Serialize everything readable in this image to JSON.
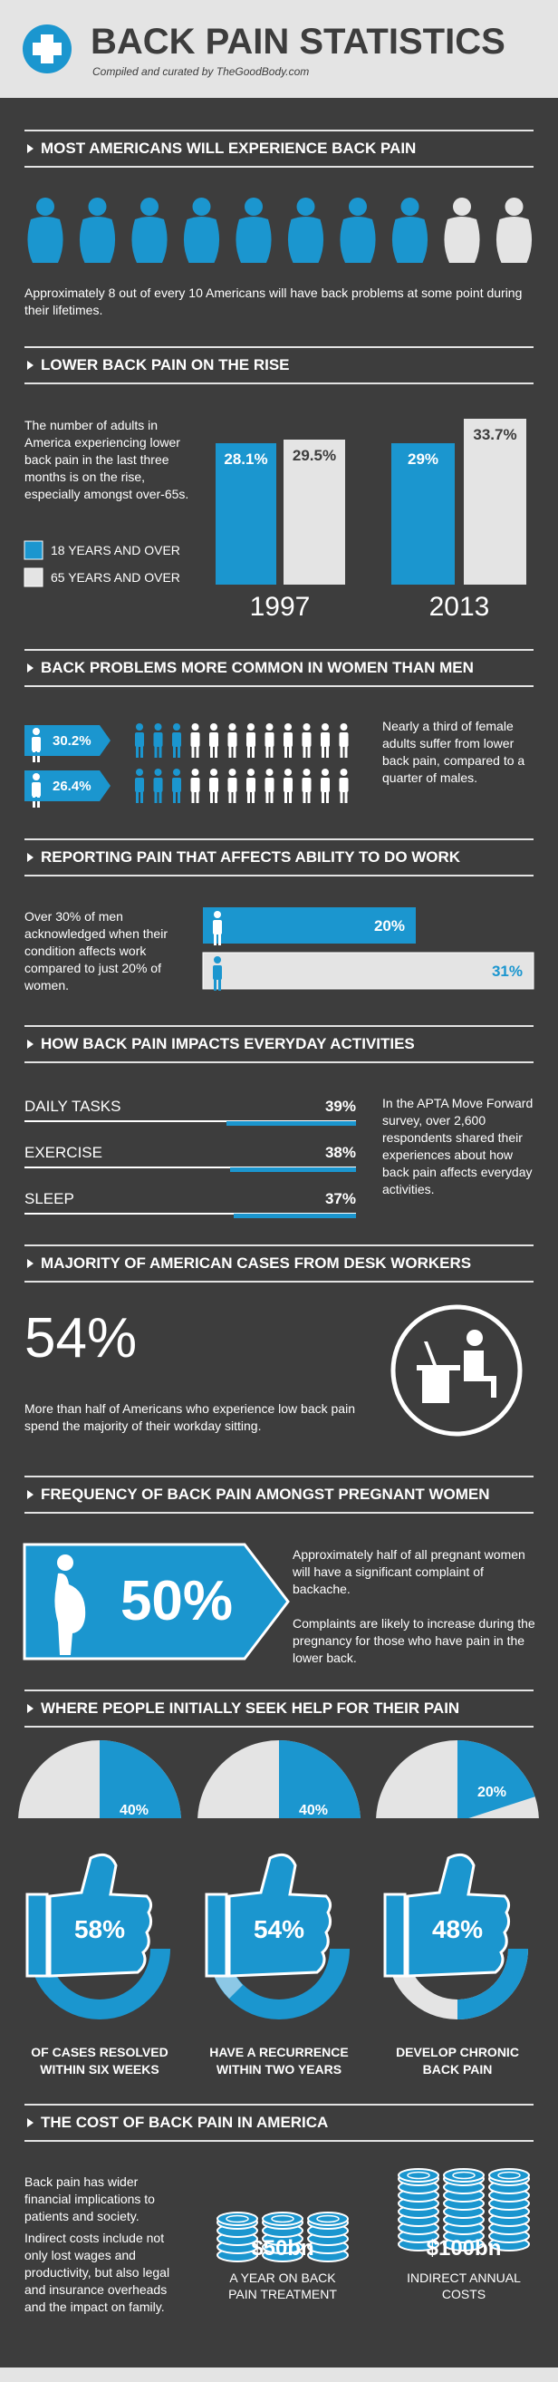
{
  "header": {
    "title": "BACK PAIN STATISTICS",
    "subtitle": "Compiled and curated by TheGoodBody.com"
  },
  "sections": [
    {
      "heading": "MOST AMERICANS WILL EXPERIENCE BACK PAIN",
      "text": "Approximately 8 out of every 10 Americans will have back problems at some point during their lifetimes."
    },
    {
      "heading": "LOWER BACK PAIN ON THE RISE",
      "text": "The number of adults in America experiencing lower back pain in the last three months is on the rise, especially amongst over-65s.",
      "legend": [
        "18 YEARS AND OVER",
        "65 YEARS AND OVER"
      ],
      "groups": [
        {
          "year": "1997",
          "values": [
            "28.1%",
            "29.5%"
          ]
        },
        {
          "year": "2013",
          "values": [
            "29%",
            "33.7%"
          ]
        }
      ]
    },
    {
      "heading": "BACK PROBLEMS MORE COMMON IN WOMEN THAN MEN",
      "rows": [
        "30.2%",
        "26.4%"
      ],
      "text": "Nearly a third of female adults suffer from lower back pain, compared to a quarter of males."
    },
    {
      "heading": "REPORTING PAIN THAT AFFECTS ABILITY TO DO WORK",
      "text": "Over 30% of men acknowledged when their condition affects work compared to just 20% of women.",
      "bars": [
        "20%",
        "31%"
      ]
    },
    {
      "heading": "HOW BACK PAIN IMPACTS EVERYDAY ACTIVITIES",
      "rows": [
        {
          "label": "DAILY TASKS",
          "value": "39%"
        },
        {
          "label": "EXERCISE",
          "value": "38%"
        },
        {
          "label": "SLEEP",
          "value": "37%"
        }
      ],
      "text": "In the APTA Move Forward survey, over 2,600 respondents shared their experiences about how back pain affects everyday activities."
    },
    {
      "heading": "MAJORITY OF AMERICAN CASES FROM DESK WORKERS",
      "stat": "54%",
      "text": "More than half of Americans who experience low back pain spend the majority of their workday sitting."
    },
    {
      "heading": "FREQUENCY OF BACK PAIN AMONGST PREGNANT WOMEN",
      "stat": "50%",
      "text": [
        "Approximately half of all pregnant women will have a significant complaint of backache.",
        "Complaints are likely to increase during the pregnancy for those who have pain in the lower back."
      ]
    },
    {
      "heading": "WHERE PEOPLE INITIALLY SEEK HELP FOR THEIR PAIN",
      "pies": [
        "40%",
        "40%",
        "20%"
      ],
      "stats": [
        {
          "value": "58%",
          "caption": "OF CASES RESOLVED WITHIN SIX WEEKS"
        },
        {
          "value": "54%",
          "caption": "HAVE A RECURRENCE WITHIN TWO YEARS"
        },
        {
          "value": "48%",
          "caption": "DEVELOP CHRONIC BACK PAIN"
        }
      ]
    },
    {
      "heading": "THE COST OF BACK PAIN IN AMERICA",
      "text": [
        "Back pain has wider financial implications to patients and society.",
        "Indirect costs include not only lost wages and productivity, but also legal and insurance overheads and the impact on family."
      ],
      "costs": [
        {
          "value": "$50bn",
          "caption": "A YEAR ON BACK PAIN TREATMENT"
        },
        {
          "value": "$100bn",
          "caption": "INDIRECT ANNUAL COSTS"
        }
      ]
    }
  ]
}
